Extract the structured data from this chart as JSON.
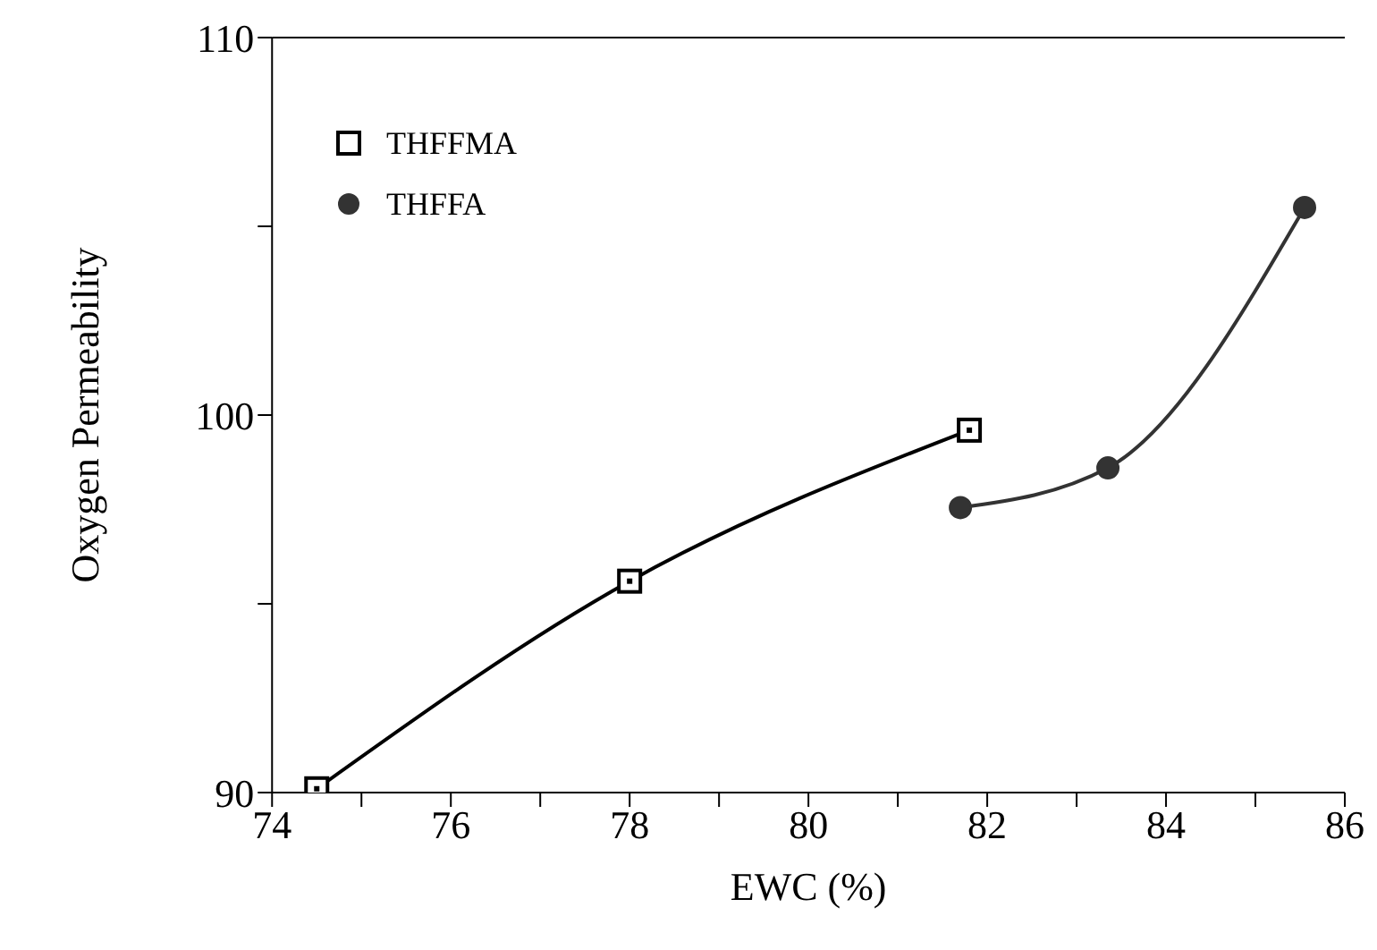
{
  "chart_data": {
    "type": "line",
    "xlabel": "EWC (%)",
    "ylabel": "Oxygen Permeability",
    "xlim": [
      74,
      86
    ],
    "xticks": [
      74,
      {
        "value": 75,
        "label": null
      },
      76,
      {
        "value": 77,
        "label": null
      },
      78,
      {
        "value": 79,
        "label": null
      },
      80,
      {
        "value": 81,
        "label": null
      },
      82,
      {
        "value": 83,
        "label": null
      },
      84,
      {
        "value": 85,
        "label": null
      },
      86
    ],
    "ylim": [
      90,
      110
    ],
    "yticks": [
      90,
      {
        "value": 95,
        "label": null
      },
      100,
      {
        "value": 105,
        "label": null
      },
      110
    ],
    "legend": "top left",
    "line_style": "solid",
    "series": [
      {
        "name": "THFFMA",
        "color": "#000000",
        "marker": "square",
        "x": [
          74.5,
          78.0,
          81.8
        ],
        "values": [
          90.1,
          95.6,
          99.6
        ]
      },
      {
        "name": "THFFA",
        "color": "#333333",
        "marker": "circle",
        "x": [
          81.7,
          83.35,
          85.55
        ],
        "values": [
          97.55,
          98.6,
          105.5
        ]
      }
    ]
  }
}
